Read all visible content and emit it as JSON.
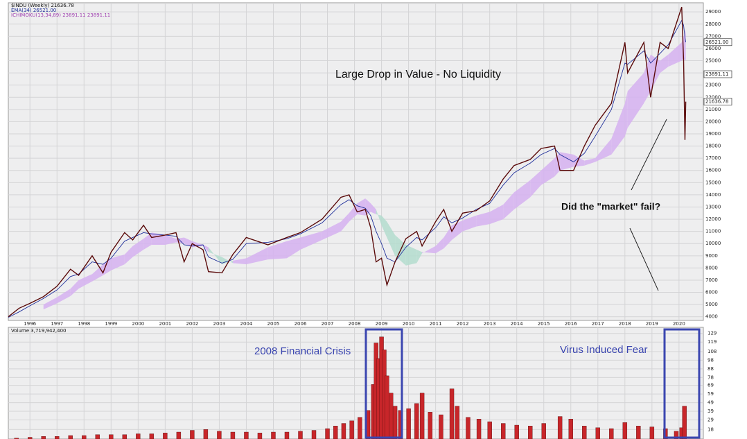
{
  "chart_data": [
    {
      "type": "line",
      "series": [
        {
          "name": "$INDU (Weekly) 21636.78",
          "color": "#5a0a0a",
          "values": [
            4000,
            4700,
            5100,
            5650,
            6500,
            7900,
            7400,
            9000,
            7600,
            9300,
            10900,
            10300,
            11500,
            10500,
            10700,
            10900,
            8500,
            10000,
            9500,
            7700,
            7600,
            9100,
            10500,
            9900,
            10500,
            10900,
            12000,
            13800,
            14000,
            12600,
            12800,
            11300,
            8500,
            8800,
            6600,
            8500,
            10400,
            11000,
            9800,
            11800,
            12800,
            11000,
            12500,
            12700,
            13500,
            15300,
            16400,
            16900,
            17800,
            18000,
            16000,
            16000,
            18000,
            19700,
            21500,
            26500,
            24000,
            26500,
            22000,
            26500,
            26000,
            29400,
            25000,
            18500,
            21636
          ]
        },
        {
          "name": "EMA(34) 26521.00",
          "color": "#1f2f9a",
          "values": [
            3950,
            4400,
            4900,
            5500,
            6200,
            7300,
            7500,
            8500,
            8300,
            8800,
            10200,
            10500,
            10900,
            10800,
            10700,
            10600,
            9900,
            9800,
            9900,
            8900,
            8400,
            8700,
            10000,
            10100,
            10400,
            10800,
            11700,
            13200,
            13600,
            13100,
            12900,
            12300,
            11000,
            10000,
            8800,
            8500,
            9700,
            10500,
            10300,
            11300,
            12200,
            11700,
            12100,
            12800,
            13300,
            14800,
            15800,
            16600,
            17300,
            17800,
            17300,
            16700,
            17400,
            18800,
            21000,
            24800,
            24700,
            25800,
            24800,
            25600,
            26300,
            28300,
            27900,
            26900,
            26521
          ]
        }
      ],
      "x": [
        1995.2,
        1995.6,
        1996.0,
        1996.5,
        1997.0,
        1997.5,
        1997.8,
        1998.3,
        1998.7,
        1999.0,
        1999.5,
        1999.8,
        2000.2,
        2000.5,
        2001.0,
        2001.4,
        2001.7,
        2002.0,
        2002.4,
        2002.6,
        2003.1,
        2003.5,
        2004.0,
        2004.8,
        2005.5,
        2006.0,
        2006.8,
        2007.5,
        2007.8,
        2008.1,
        2008.4,
        2008.6,
        2008.8,
        2009.0,
        2009.2,
        2009.5,
        2009.9,
        2010.3,
        2010.5,
        2011.0,
        2011.3,
        2011.6,
        2012.0,
        2012.5,
        2013.0,
        2013.5,
        2013.9,
        2014.5,
        2014.9,
        2015.4,
        2015.6,
        2016.1,
        2016.5,
        2016.9,
        2017.5,
        2018.0,
        2018.1,
        2018.7,
        2018.95,
        2019.3,
        2019.6,
        2020.1,
        2020.17,
        2020.22,
        2020.25
      ],
      "cloud": {
        "name": "ICHIMOKU(13,34,89) 23891.11 23891.11",
        "color": "#d6b4ef",
        "color_down": "#b6ddcf",
        "span_a": [
          null,
          null,
          null,
          5000,
          5600,
          6300,
          7000,
          7500,
          8300,
          8800,
          9100,
          9800,
          10400,
          10900,
          10700,
          10400,
          10500,
          10200,
          9900,
          9700,
          8300,
          8600,
          8800,
          9700,
          10200,
          10500,
          11000,
          11800,
          12500,
          13300,
          13700,
          13300,
          12800,
          11500,
          10500,
          9000,
          8200,
          8400,
          9200,
          9800,
          10500,
          11500,
          11900,
          12300,
          12600,
          13200,
          14200,
          15200,
          16000,
          17000,
          17500,
          17300,
          16800,
          17000,
          18600,
          21500,
          22500,
          24000,
          25500,
          25000,
          25500,
          26500,
          27000,
          27200,
          27500
        ],
        "span_b": [
          null,
          null,
          null,
          4600,
          5100,
          5700,
          6300,
          6900,
          7400,
          7800,
          8300,
          8900,
          9500,
          9900,
          9900,
          10100,
          10000,
          9700,
          9800,
          9300,
          8900,
          8400,
          8300,
          8700,
          8800,
          9500,
          10300,
          11000,
          11800,
          12400,
          12300,
          12600,
          12400,
          12300,
          11800,
          10700,
          9900,
          9500,
          9300,
          9200,
          9600,
          10300,
          11000,
          11400,
          11600,
          12000,
          12800,
          13800,
          14800,
          15500,
          16000,
          16300,
          16400,
          16700,
          17300,
          18800,
          19500,
          21500,
          22500,
          24000,
          24500,
          25000,
          25200,
          25000,
          25100
        ]
      },
      "last_value_labels": [
        {
          "value": 26521,
          "label": "26521.00"
        },
        {
          "value": 23891.11,
          "label": "23891.11"
        },
        {
          "value": 21636.78,
          "label": "21636.78"
        }
      ],
      "xlim": [
        1995.2,
        2020.9
      ],
      "xticks": [
        1996,
        1997,
        1998,
        1999,
        2000,
        2001,
        2002,
        2003,
        2004,
        2005,
        2006,
        2007,
        2008,
        2009,
        2010,
        2011,
        2012,
        2013,
        2014,
        2015,
        2016,
        2017,
        2018,
        2019,
        2020
      ],
      "ylim": [
        3700,
        29750
      ],
      "yticks": [
        4000,
        5000,
        6000,
        7000,
        8000,
        9000,
        10000,
        11000,
        12000,
        13000,
        14000,
        15000,
        16000,
        17000,
        18000,
        19000,
        20000,
        21000,
        22000,
        23000,
        24000,
        25000,
        26000,
        27000,
        28000,
        29000
      ],
      "grid": true,
      "annotations": [
        "Large Drop in Value - No Liquidity",
        "Did the \"market\" fail?"
      ]
    },
    {
      "type": "bar",
      "title": "Volume 3,719,942,400",
      "color": "#c8262a",
      "x": [
        1995.5,
        1996.0,
        1996.5,
        1997.0,
        1997.5,
        1998.0,
        1998.5,
        1999.0,
        1999.5,
        2000.0,
        2000.5,
        2001.0,
        2001.5,
        2002.0,
        2002.5,
        2003.0,
        2003.5,
        2004.0,
        2004.5,
        2005.0,
        2005.5,
        2006.0,
        2006.5,
        2007.0,
        2007.3,
        2007.6,
        2007.9,
        2008.2,
        2008.5,
        2008.7,
        2008.8,
        2008.9,
        2009.0,
        2009.1,
        2009.2,
        2009.35,
        2009.5,
        2009.7,
        2010.0,
        2010.3,
        2010.5,
        2010.8,
        2011.2,
        2011.6,
        2011.8,
        2012.2,
        2012.6,
        2013.0,
        2013.5,
        2014.0,
        2014.5,
        2015.0,
        2015.6,
        2016.0,
        2016.5,
        2017.0,
        2017.5,
        2018.0,
        2018.5,
        2019.0,
        2019.5,
        2019.9,
        2020.1,
        2020.2
      ],
      "values": [
        8,
        9,
        10,
        10,
        11,
        11,
        12,
        12,
        12,
        13,
        13,
        14,
        15,
        17,
        18,
        16,
        15,
        15,
        14,
        15,
        15,
        16,
        17,
        19,
        22,
        25,
        28,
        32,
        40,
        70,
        118,
        100,
        125,
        110,
        80,
        60,
        45,
        40,
        42,
        48,
        60,
        38,
        35,
        65,
        45,
        32,
        30,
        27,
        25,
        23,
        22,
        25,
        33,
        30,
        22,
        20,
        19,
        26,
        22,
        21,
        19,
        16,
        20,
        45
      ],
      "ylim": [
        7,
        136
      ],
      "yticks": [
        18,
        29,
        39,
        49,
        59,
        69,
        78,
        88,
        98,
        108,
        119,
        129
      ],
      "annotations": [
        "2008 Financial Crisis",
        "Virus Induced Fear"
      ]
    }
  ]
}
